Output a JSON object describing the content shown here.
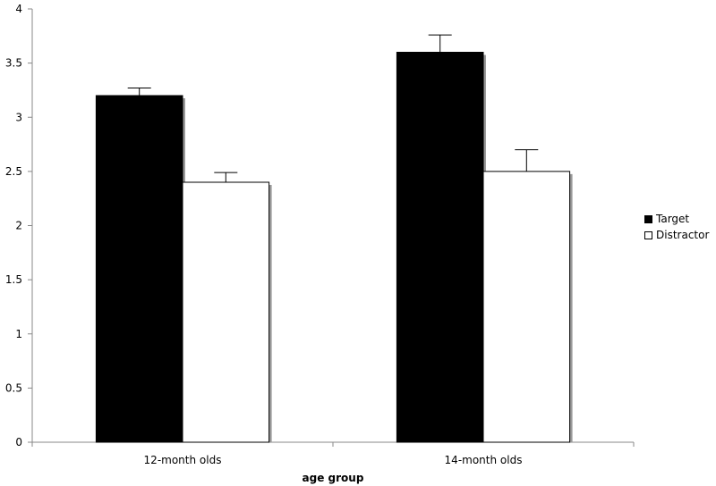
{
  "chart_data": {
    "type": "bar",
    "categories": [
      "12-month olds",
      "14-month olds"
    ],
    "series": [
      {
        "name": "Target",
        "values": [
          3.2,
          3.6
        ],
        "errors": [
          0.07,
          0.16
        ],
        "color": "#000000"
      },
      {
        "name": "Distractor",
        "values": [
          2.4,
          2.5
        ],
        "errors": [
          0.09,
          0.2
        ],
        "color": "#ffffff"
      }
    ],
    "xlabel": "age group",
    "ylabel": "",
    "ylim": [
      0,
      4
    ],
    "yticks": [
      "0",
      "0.5",
      "1",
      "1.5",
      "2",
      "2.5",
      "3",
      "3.5",
      "4"
    ],
    "grid": false,
    "legend_position": "right"
  }
}
